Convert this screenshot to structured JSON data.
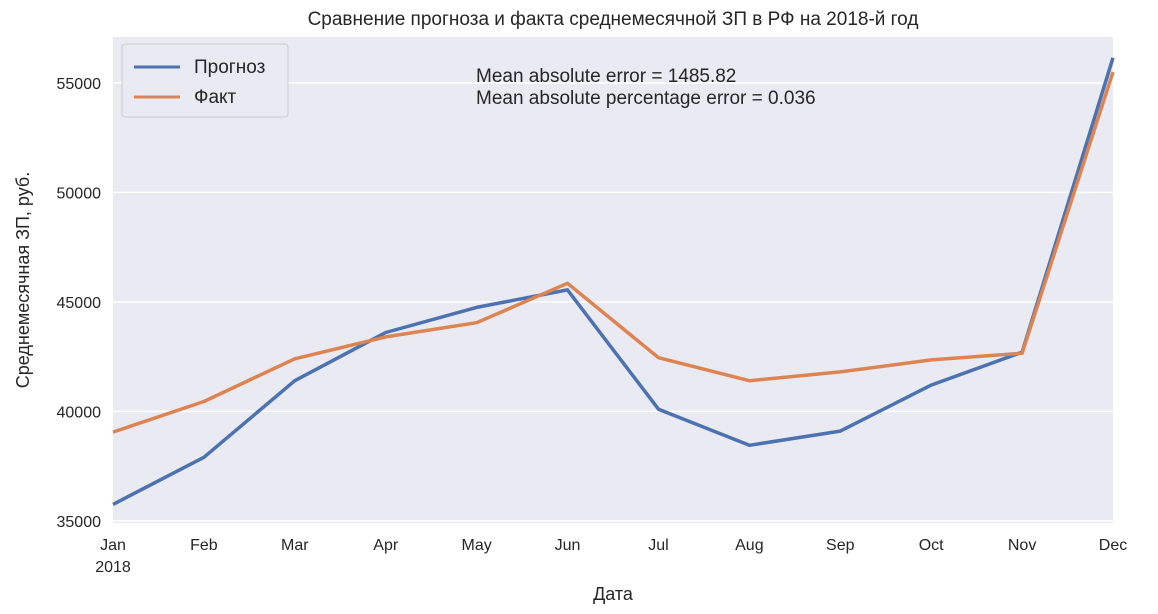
{
  "chart_data": {
    "type": "line",
    "title": "Сравнение прогноза и факта среднемесячной ЗП в РФ на 2018-й год",
    "xlabel": "Дата",
    "ylabel": "Среднемесячная ЗП, руб.",
    "categories": [
      "Jan",
      "Feb",
      "Mar",
      "Apr",
      "May",
      "Jun",
      "Jul",
      "Aug",
      "Sep",
      "Oct",
      "Nov",
      "Dec"
    ],
    "year_label": "2018",
    "ylim": [
      34900,
      57100
    ],
    "yticks": [
      35000,
      40000,
      45000,
      50000,
      55000
    ],
    "grid": true,
    "legend_position": "top-left",
    "series": [
      {
        "name": "Прогноз",
        "color": "#4c72b0",
        "values": [
          35750,
          37900,
          41400,
          43600,
          44750,
          45550,
          40100,
          38450,
          39100,
          41200,
          42700,
          56150
        ]
      },
      {
        "name": "Факт",
        "color": "#dd8452",
        "values": [
          39050,
          40450,
          42400,
          43400,
          44050,
          45850,
          42450,
          41400,
          41800,
          42350,
          42650,
          55500
        ]
      }
    ],
    "annotations": [
      "Mean absolute error = 1485.82",
      "Mean absolute percentage error = 0.036"
    ]
  }
}
